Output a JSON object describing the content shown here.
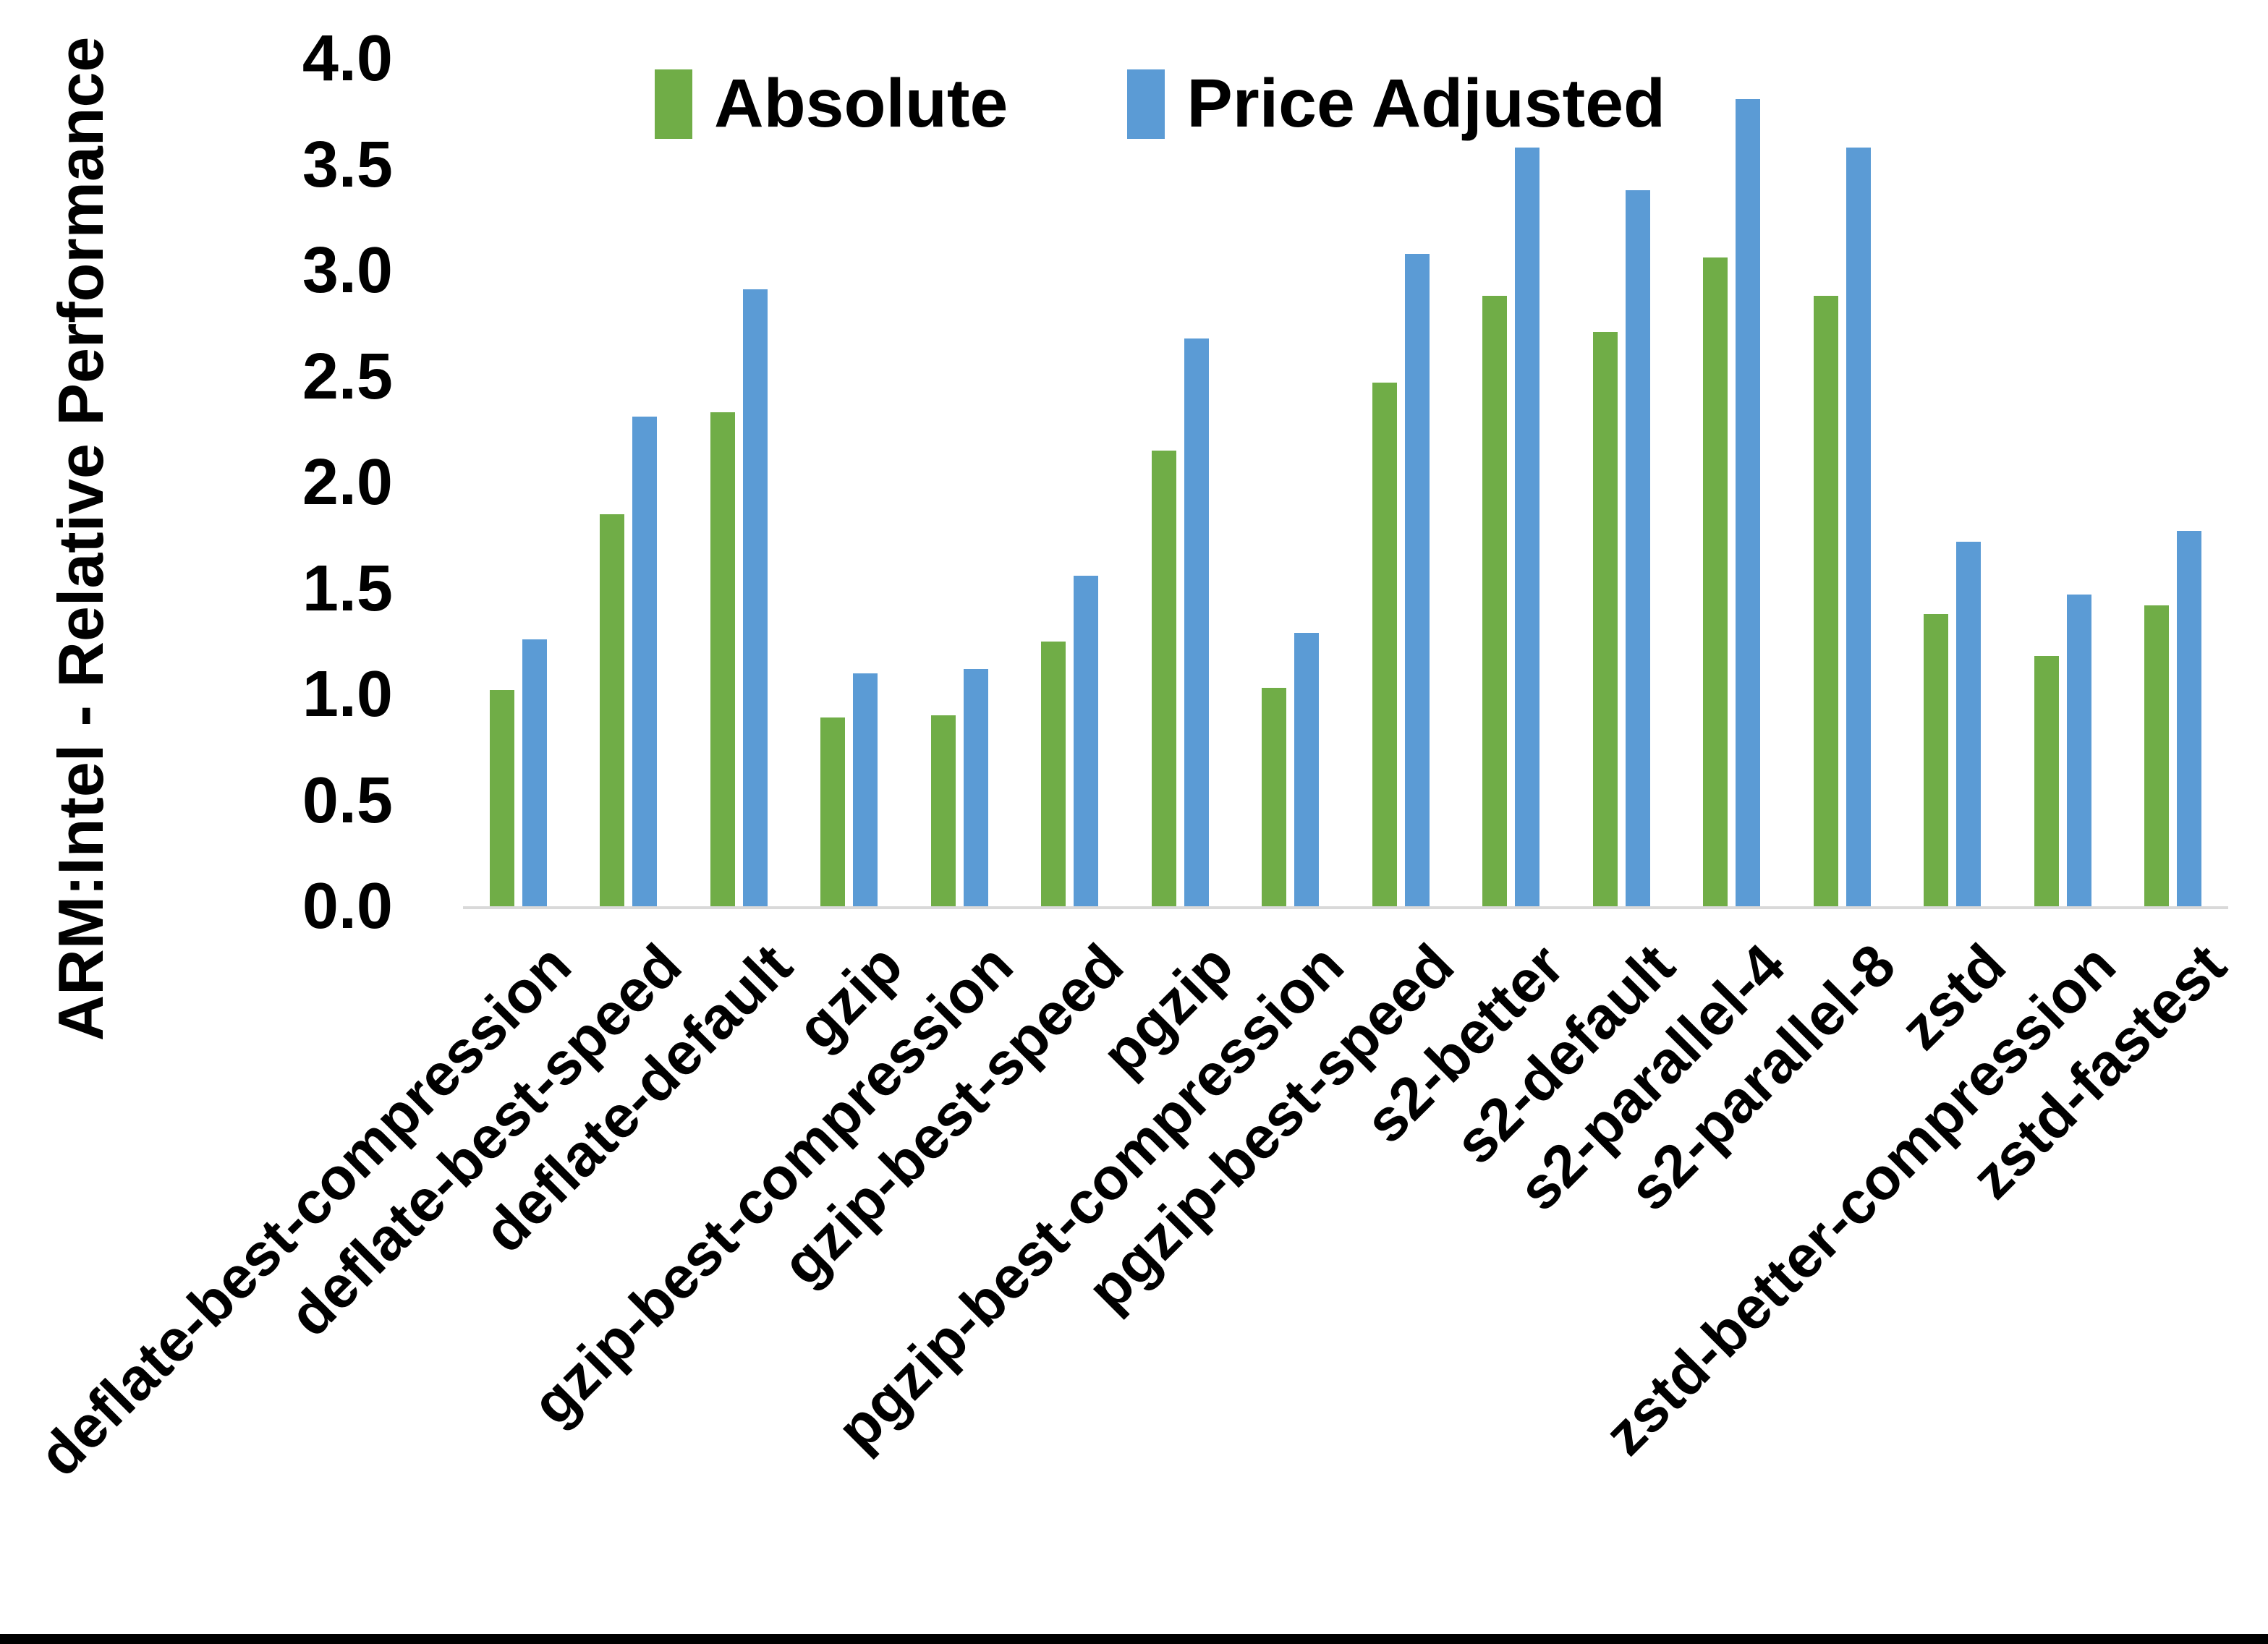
{
  "y_axis": {
    "title": "ARM:Intel - Relative Performance",
    "tick_labels": [
      "4.0",
      "3.5",
      "3.0",
      "2.5",
      "2.0",
      "1.5",
      "1.0",
      "0.5",
      "0.0"
    ],
    "min": 0.0,
    "max": 4.0
  },
  "colors": {
    "absolute": "#70AD47",
    "price_adjusted": "#5B9BD5",
    "axis_line": "#D9D9D9",
    "text": "#000000",
    "bottom_rule": "#000000"
  },
  "legend": {
    "items": [
      {
        "label": "Absolute",
        "color": "#70AD47"
      },
      {
        "label": "Price Adjusted",
        "color": "#5B9BD5"
      }
    ]
  },
  "chart_data": {
    "type": "bar",
    "title": "",
    "xlabel": "",
    "ylabel": "ARM:Intel - Relative Performance",
    "ylim": [
      0.0,
      4.0
    ],
    "ytick_step": 0.5,
    "grid": false,
    "legend_position": "top",
    "categories": [
      "deflate-best-compression",
      "deflate-best-speed",
      "deflate-default",
      "gzip",
      "gzip-best-compression",
      "gzip-best-speed",
      "pgzip",
      "pgzip-best-compression",
      "pgzip-best-speed",
      "s2-better",
      "s2-default",
      "s2-parallel-4",
      "s2-parallel-8",
      "zstd",
      "zstd-better-compression",
      "zstd-fastest"
    ],
    "series": [
      {
        "name": "Absolute",
        "color": "#70AD47",
        "values": [
          1.02,
          1.85,
          2.33,
          0.89,
          0.9,
          1.25,
          2.15,
          1.03,
          2.47,
          2.88,
          2.71,
          3.06,
          2.88,
          1.38,
          1.18,
          1.42
        ]
      },
      {
        "name": "Price Adjusted",
        "color": "#5B9BD5",
        "values": [
          1.26,
          2.31,
          2.91,
          1.1,
          1.12,
          1.56,
          2.68,
          1.29,
          3.08,
          3.58,
          3.38,
          3.81,
          3.58,
          1.72,
          1.47,
          1.77
        ]
      }
    ]
  }
}
